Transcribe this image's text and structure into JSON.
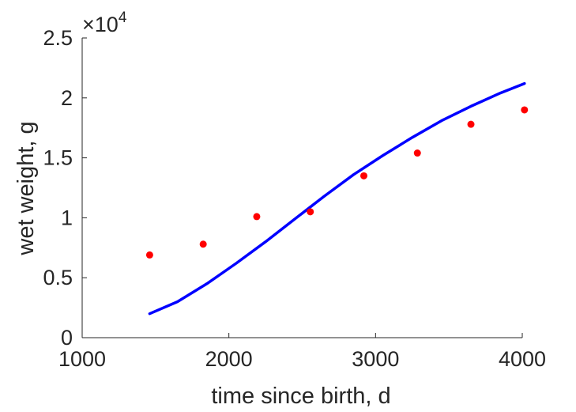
{
  "chart_data": {
    "type": "line",
    "xlabel": "time since birth, d",
    "ylabel": "wet weight, g",
    "xlim": [
      1000,
      4000
    ],
    "ylim": [
      0,
      25000
    ],
    "x_ticks": [
      1000,
      2000,
      3000,
      4000
    ],
    "x_tick_labels": [
      "1000",
      "2000",
      "3000",
      "4000"
    ],
    "y_ticks": [
      0,
      5000,
      10000,
      15000,
      20000,
      25000
    ],
    "y_tick_labels": [
      "0",
      "0.5",
      "1",
      "1.5",
      "2",
      "2.5"
    ],
    "y_exponent_label": {
      "base": "×10",
      "power": "4"
    },
    "grid": false,
    "series": [
      {
        "kind": "line",
        "color": "#0000ff",
        "x": [
          1460,
          1650,
          1850,
          2050,
          2250,
          2450,
          2650,
          2850,
          3050,
          3250,
          3450,
          3650,
          3850,
          4015
        ],
        "y": [
          2000,
          3000,
          4500,
          6200,
          8000,
          9900,
          11800,
          13600,
          15200,
          16700,
          18100,
          19300,
          20400,
          21200
        ]
      },
      {
        "kind": "scatter",
        "color": "#ff0000",
        "x": [
          1460,
          1825,
          2190,
          2555,
          2920,
          3285,
          3650,
          4015
        ],
        "y": [
          6900,
          7800,
          10100,
          10500,
          13500,
          15400,
          17800,
          19000
        ]
      }
    ]
  }
}
